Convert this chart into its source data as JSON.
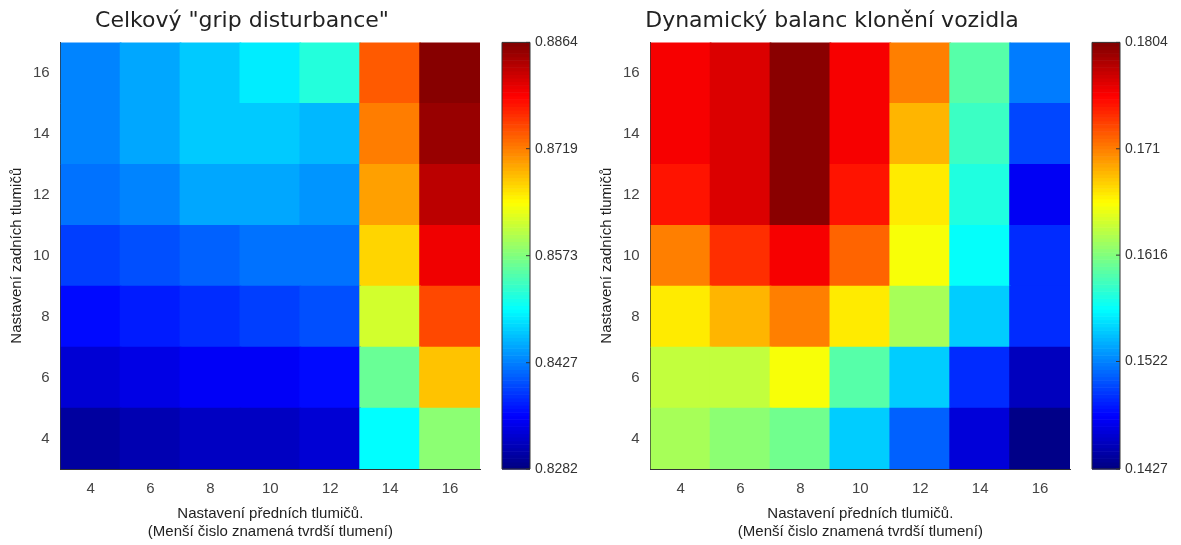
{
  "chart_data": [
    {
      "type": "heatmap",
      "title": "Celkový \"grip disturbance\"",
      "xlabel": "Nastavení předních tlumičů.\n(Menší čislo znamená tvrdší tlumení)",
      "ylabel": "Nastavení zadních tlumičů",
      "categories": [
        "4",
        "6",
        "8",
        "10",
        "12",
        "14",
        "16"
      ],
      "y_categories": [
        "16",
        "14",
        "12",
        "10",
        "8",
        "6",
        "4"
      ],
      "cells": [
        [
          0.843,
          0.845,
          0.847,
          0.849,
          0.852,
          0.874,
          0.886
        ],
        [
          0.843,
          0.845,
          0.847,
          0.847,
          0.846,
          0.872,
          0.885
        ],
        [
          0.842,
          0.843,
          0.845,
          0.845,
          0.844,
          0.87,
          0.883
        ],
        [
          0.839,
          0.84,
          0.841,
          0.842,
          0.842,
          0.867,
          0.88
        ],
        [
          0.836,
          0.837,
          0.838,
          0.839,
          0.84,
          0.862,
          0.875
        ],
        [
          0.833,
          0.834,
          0.835,
          0.835,
          0.836,
          0.856,
          0.868
        ],
        [
          0.83,
          0.831,
          0.832,
          0.832,
          0.833,
          0.85,
          0.858
        ]
      ],
      "clim": [
        0.8282,
        0.8864
      ],
      "cticks": [
        0.8282,
        0.8427,
        0.8573,
        0.8719,
        0.8864
      ]
    },
    {
      "type": "heatmap",
      "title": "Dynamický balanc klonění vozidla",
      "xlabel": "Nastavení předních tlumičů.\n(Menší čislo znamená tvrdší tlumení)",
      "ylabel": "Nastavení zadních tlumičů",
      "categories": [
        "4",
        "6",
        "8",
        "10",
        "12",
        "14",
        "16"
      ],
      "y_categories": [
        "16",
        "14",
        "12",
        "10",
        "8",
        "6",
        "4"
      ],
      "cells": [
        [
          0.176,
          0.177,
          0.18,
          0.176,
          0.171,
          0.16,
          0.152
        ],
        [
          0.176,
          0.177,
          0.18,
          0.176,
          0.169,
          0.159,
          0.15
        ],
        [
          0.175,
          0.177,
          0.18,
          0.175,
          0.167,
          0.158,
          0.147
        ],
        [
          0.171,
          0.174,
          0.176,
          0.172,
          0.166,
          0.157,
          0.149
        ],
        [
          0.167,
          0.169,
          0.171,
          0.167,
          0.163,
          0.155,
          0.149
        ],
        [
          0.164,
          0.164,
          0.166,
          0.16,
          0.155,
          0.149,
          0.145
        ],
        [
          0.163,
          0.162,
          0.161,
          0.155,
          0.151,
          0.146,
          0.143
        ]
      ],
      "clim": [
        0.1427,
        0.1804
      ],
      "cticks": [
        0.1427,
        0.1522,
        0.1616,
        0.171,
        0.1804
      ]
    }
  ]
}
